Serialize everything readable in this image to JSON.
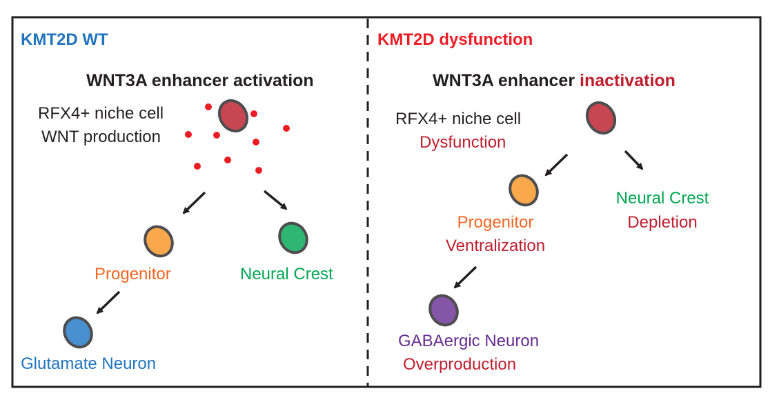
{
  "colors": {
    "blue": "#1f74bb",
    "red": "#ec1c24",
    "darkred": "#be1e2d",
    "orange": "#f26522",
    "green": "#00a651",
    "purple": "#662d91",
    "text": "#231f20",
    "niche": "#c84652",
    "progenitor": "#f9a94b",
    "crest": "#2fb673",
    "glutamate": "#4a8fcf",
    "gaba": "#8555a8"
  },
  "left": {
    "heading": "KMT2D WT",
    "title": "WNT3A enhancer activation",
    "niche_line1": "RFX4+ niche cell",
    "niche_line2": "WNT production",
    "progenitor": "Progenitor",
    "neural_crest": "Neural Crest",
    "glutamate": "Glutamate Neuron"
  },
  "right": {
    "heading": "KMT2D dysfunction",
    "title_part1": "WNT3A enhancer ",
    "title_part2": "inactivation",
    "niche_line1": "RFX4+ niche cell",
    "niche_line2": "Dysfunction",
    "progenitor_line1": "Progenitor",
    "progenitor_line2": "Ventralization",
    "crest_line1": "Neural Crest",
    "crest_line2": "Depletion",
    "gaba_line1": "GABAergic Neuron",
    "gaba_line2": "Overproduction"
  }
}
